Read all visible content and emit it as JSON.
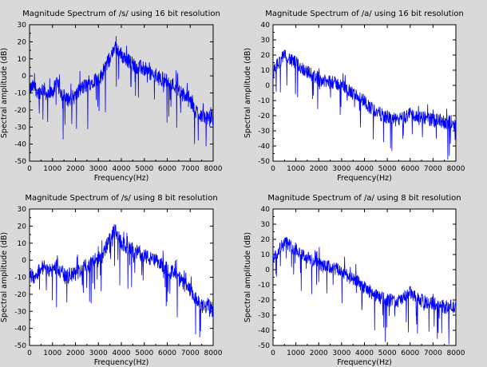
{
  "chart_data": [
    {
      "type": "line",
      "title": "Magnitude Spectrum of /s/ using 16 bit resolution",
      "xlabel": "Frequency(Hz)",
      "ylabel": "Spectral amplitude (dB)",
      "xlim": [
        0,
        8000
      ],
      "ylim": [
        -50,
        30
      ],
      "xticks": [
        0,
        1000,
        2000,
        3000,
        4000,
        5000,
        6000,
        7000,
        8000
      ],
      "yticks": [
        -50,
        -40,
        -30,
        -20,
        -10,
        0,
        10,
        20,
        30
      ],
      "plot_background": "#d9d9d9",
      "series_color": "#0000ff",
      "series": [
        {
          "x": [
            0,
            200,
            400,
            600,
            800,
            1000,
            1200,
            1400,
            1600,
            1800,
            2000,
            2200,
            2400,
            2600,
            2800,
            3000,
            3200,
            3400,
            3600,
            3700,
            3800,
            4000,
            4200,
            4400,
            4600,
            4800,
            5000,
            5200,
            5400,
            5600,
            5800,
            6000,
            6200,
            6400,
            6600,
            6800,
            7000,
            7200,
            7400,
            7600,
            7800,
            8000
          ],
          "y": [
            -8,
            -6,
            -10,
            -7,
            -12,
            -9,
            -5,
            -10,
            -14,
            -13,
            -12,
            -8,
            -6,
            -5,
            -2,
            -3,
            2,
            8,
            12,
            18,
            16,
            12,
            10,
            8,
            6,
            5,
            4,
            2,
            0,
            -1,
            -2,
            -3,
            -5,
            -6,
            -10,
            -12,
            -15,
            -20,
            -22,
            -24,
            -25,
            -26
          ]
        }
      ]
    },
    {
      "type": "line",
      "title": "Magnitude Spectrum of /a/ using 16 bit resolution",
      "xlabel": "Frequency(Hz)",
      "ylabel": "Spectral amplitude (dB)",
      "xlim": [
        0,
        8000
      ],
      "ylim": [
        -50,
        40
      ],
      "xticks": [
        0,
        1000,
        2000,
        3000,
        4000,
        5000,
        6000,
        7000,
        8000
      ],
      "yticks": [
        -50,
        -40,
        -30,
        -20,
        -10,
        0,
        10,
        20,
        30,
        40
      ],
      "plot_background": "#ffffff",
      "series_color": "#0000ff",
      "series": [
        {
          "x": [
            0,
            200,
            400,
            600,
            800,
            1000,
            1200,
            1400,
            1600,
            1800,
            2000,
            2200,
            2400,
            2600,
            2800,
            3000,
            3200,
            3400,
            3600,
            3800,
            4000,
            4200,
            4400,
            4600,
            4800,
            5000,
            5200,
            5400,
            5600,
            5800,
            6000,
            6200,
            6400,
            6600,
            6800,
            7000,
            7200,
            7400,
            7600,
            7800,
            8000
          ],
          "y": [
            8,
            14,
            18,
            20,
            16,
            15,
            12,
            10,
            8,
            6,
            5,
            3,
            2,
            2,
            1,
            0,
            -2,
            -5,
            -6,
            -8,
            -10,
            -14,
            -16,
            -18,
            -20,
            -21,
            -22,
            -23,
            -22,
            -21,
            -18,
            -20,
            -22,
            -21,
            -22,
            -23,
            -22,
            -24,
            -25,
            -24,
            -26
          ]
        }
      ]
    },
    {
      "type": "line",
      "title": "Magnitude Spectrum of /s/ using 8 bit resolution",
      "xlabel": "Frequency(Hz)",
      "ylabel": "Spectral amplitude (dB)",
      "xlim": [
        0,
        8000
      ],
      "ylim": [
        -50,
        30
      ],
      "xticks": [
        0,
        1000,
        2000,
        3000,
        4000,
        5000,
        6000,
        7000,
        8000
      ],
      "yticks": [
        -50,
        -40,
        -30,
        -20,
        -10,
        0,
        10,
        20,
        30
      ],
      "plot_background": "#ffffff",
      "series_color": "#0000ff",
      "series": [
        {
          "x": [
            0,
            200,
            400,
            600,
            800,
            1000,
            1200,
            1400,
            1600,
            1800,
            2000,
            2200,
            2400,
            2600,
            2800,
            3000,
            3200,
            3400,
            3600,
            3700,
            3800,
            4000,
            4200,
            4400,
            4600,
            4800,
            5000,
            5200,
            5400,
            5600,
            5800,
            6000,
            6200,
            6400,
            6600,
            6800,
            7000,
            7200,
            7400,
            7600,
            7800,
            8000
          ],
          "y": [
            -8,
            -10,
            -6,
            -4,
            -5,
            -6,
            -3,
            -8,
            -10,
            -9,
            -8,
            -6,
            -4,
            -3,
            0,
            -1,
            3,
            10,
            14,
            18,
            15,
            10,
            8,
            6,
            5,
            4,
            3,
            1,
            0,
            -2,
            -3,
            -5,
            -7,
            -9,
            -12,
            -15,
            -18,
            -22,
            -26,
            -28,
            -26,
            -30
          ]
        }
      ]
    },
    {
      "type": "line",
      "title": "Magnitude Spectrum of /a/ using 8 bit resolution",
      "xlabel": "Frequency(Hz)",
      "ylabel": "Spectral amplitude (dB)",
      "xlim": [
        0,
        8000
      ],
      "ylim": [
        -50,
        40
      ],
      "xticks": [
        0,
        1000,
        2000,
        3000,
        4000,
        5000,
        6000,
        7000,
        8000
      ],
      "yticks": [
        -50,
        -40,
        -30,
        -20,
        -10,
        0,
        10,
        20,
        30,
        40
      ],
      "plot_background": "#ffffff",
      "series_color": "#0000ff",
      "series": [
        {
          "x": [
            0,
            200,
            400,
            600,
            800,
            1000,
            1200,
            1400,
            1600,
            1800,
            2000,
            2200,
            2400,
            2600,
            2800,
            3000,
            3200,
            3400,
            3600,
            3800,
            4000,
            4200,
            4400,
            4600,
            4800,
            5000,
            5200,
            5400,
            5600,
            5800,
            6000,
            6200,
            6400,
            6600,
            6800,
            7000,
            7200,
            7400,
            7600,
            7800,
            8000
          ],
          "y": [
            6,
            12,
            16,
            18,
            15,
            14,
            11,
            9,
            7,
            5,
            4,
            2,
            2,
            1,
            0,
            -1,
            -3,
            -6,
            -7,
            -9,
            -12,
            -14,
            -16,
            -18,
            -19,
            -20,
            -20,
            -21,
            -20,
            -18,
            -15,
            -18,
            -20,
            -21,
            -22,
            -22,
            -23,
            -24,
            -25,
            -24,
            -26
          ]
        }
      ]
    }
  ]
}
